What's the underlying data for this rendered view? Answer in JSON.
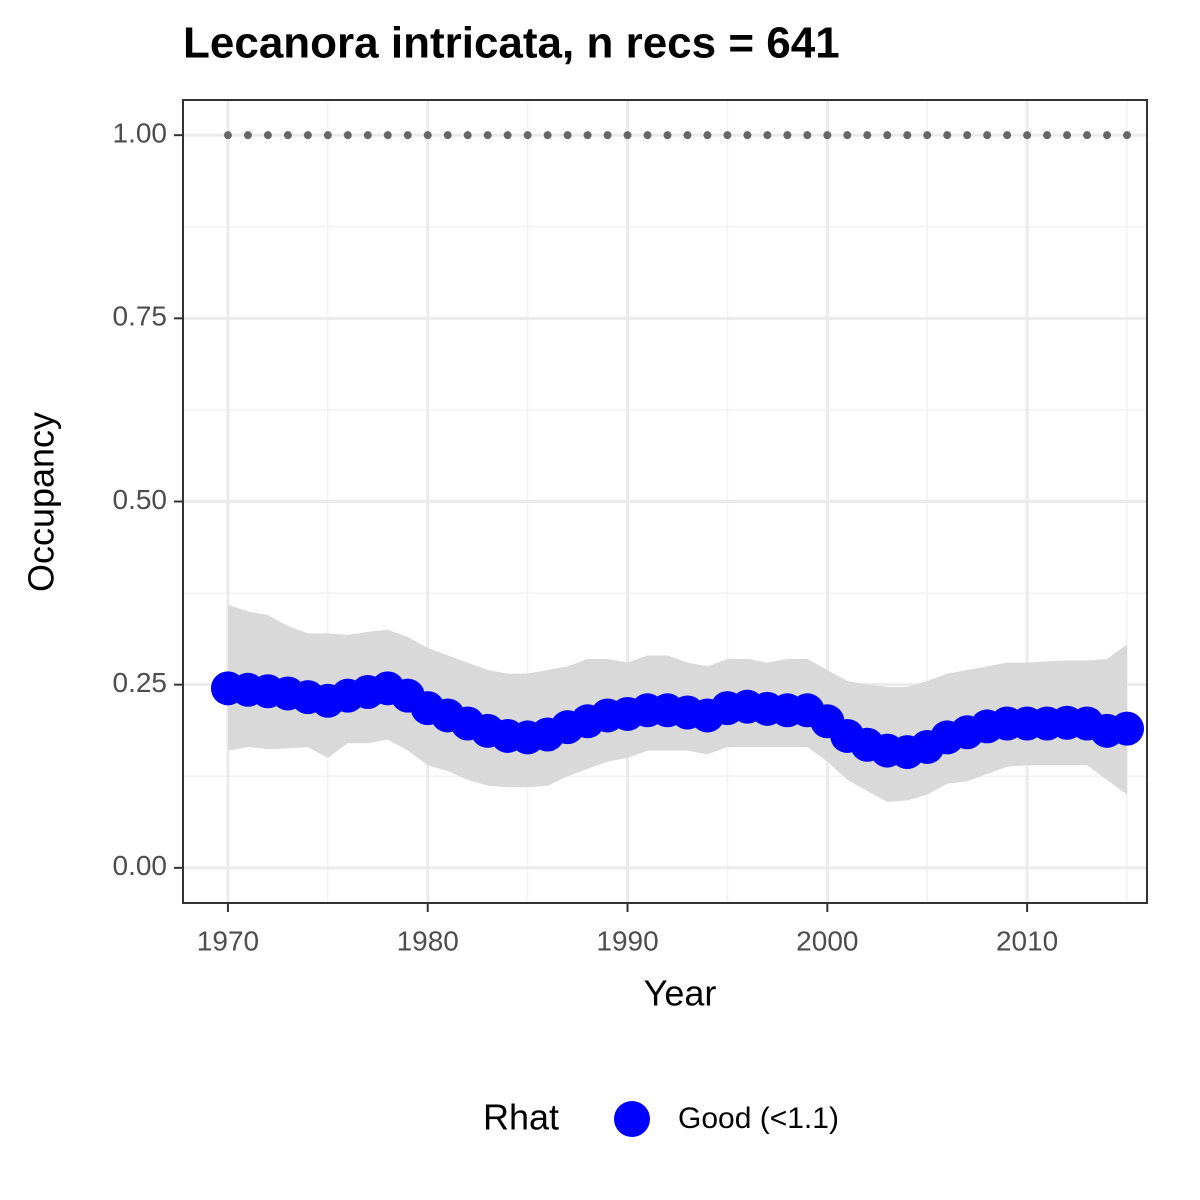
{
  "chart_data": {
    "type": "line",
    "title": "Lecanora intricata, n recs = 641",
    "x_label": "Year",
    "y_label": "Occupancy",
    "legend_title": "Rhat",
    "x": [
      1970,
      1971,
      1972,
      1973,
      1974,
      1975,
      1976,
      1977,
      1978,
      1979,
      1980,
      1981,
      1982,
      1983,
      1984,
      1985,
      1986,
      1987,
      1988,
      1989,
      1990,
      1991,
      1992,
      1993,
      1994,
      1995,
      1996,
      1997,
      1998,
      1999,
      2000,
      2001,
      2002,
      2003,
      2004,
      2005,
      2006,
      2007,
      2008,
      2009,
      2010,
      2011,
      2012,
      2013,
      2014,
      2015
    ],
    "series": [
      {
        "name": "Good (<1.1)",
        "color": "#0000ff",
        "values": [
          0.245,
          0.243,
          0.241,
          0.238,
          0.233,
          0.228,
          0.235,
          0.24,
          0.245,
          0.235,
          0.218,
          0.208,
          0.197,
          0.187,
          0.18,
          0.178,
          0.182,
          0.192,
          0.2,
          0.208,
          0.21,
          0.215,
          0.215,
          0.212,
          0.208,
          0.218,
          0.22,
          0.217,
          0.215,
          0.215,
          0.2,
          0.18,
          0.168,
          0.16,
          0.158,
          0.165,
          0.178,
          0.185,
          0.193,
          0.197,
          0.197,
          0.197,
          0.198,
          0.197,
          0.187,
          0.19
        ],
        "lower": [
          0.16,
          0.165,
          0.162,
          0.163,
          0.165,
          0.15,
          0.17,
          0.17,
          0.175,
          0.16,
          0.14,
          0.132,
          0.12,
          0.112,
          0.11,
          0.11,
          0.112,
          0.125,
          0.135,
          0.145,
          0.15,
          0.16,
          0.16,
          0.16,
          0.155,
          0.165,
          0.165,
          0.165,
          0.165,
          0.165,
          0.145,
          0.12,
          0.105,
          0.09,
          0.092,
          0.1,
          0.115,
          0.118,
          0.128,
          0.138,
          0.14,
          0.14,
          0.14,
          0.14,
          0.12,
          0.1
        ],
        "upper": [
          0.359,
          0.35,
          0.345,
          0.33,
          0.32,
          0.32,
          0.318,
          0.322,
          0.325,
          0.315,
          0.3,
          0.29,
          0.28,
          0.27,
          0.265,
          0.265,
          0.27,
          0.275,
          0.285,
          0.285,
          0.28,
          0.29,
          0.29,
          0.28,
          0.275,
          0.285,
          0.285,
          0.28,
          0.285,
          0.285,
          0.27,
          0.255,
          0.25,
          0.247,
          0.247,
          0.255,
          0.265,
          0.27,
          0.275,
          0.28,
          0.28,
          0.282,
          0.283,
          0.283,
          0.285,
          0.305
        ],
        "band_color": "#d9d9d9"
      }
    ],
    "hline": {
      "y": 1,
      "color": "#666666"
    },
    "xlim": [
      1967.75,
      2016.0
    ],
    "ylim": [
      -0.048,
      1.048
    ],
    "xticks": [
      1970,
      1980,
      1990,
      2000,
      2010
    ],
    "yticks": [
      {
        "value": 0,
        "label": "0.00"
      },
      0.25,
      {
        "value": 0.5,
        "label": "0.50"
      },
      0.75,
      {
        "value": 1,
        "label": "1.00"
      }
    ],
    "xminor": [
      1975,
      1985,
      1995,
      2005,
      2015
    ],
    "yminor": [
      0.125,
      0.375,
      0.625,
      0.875
    ],
    "grid": true,
    "legend_position": "bottom"
  }
}
